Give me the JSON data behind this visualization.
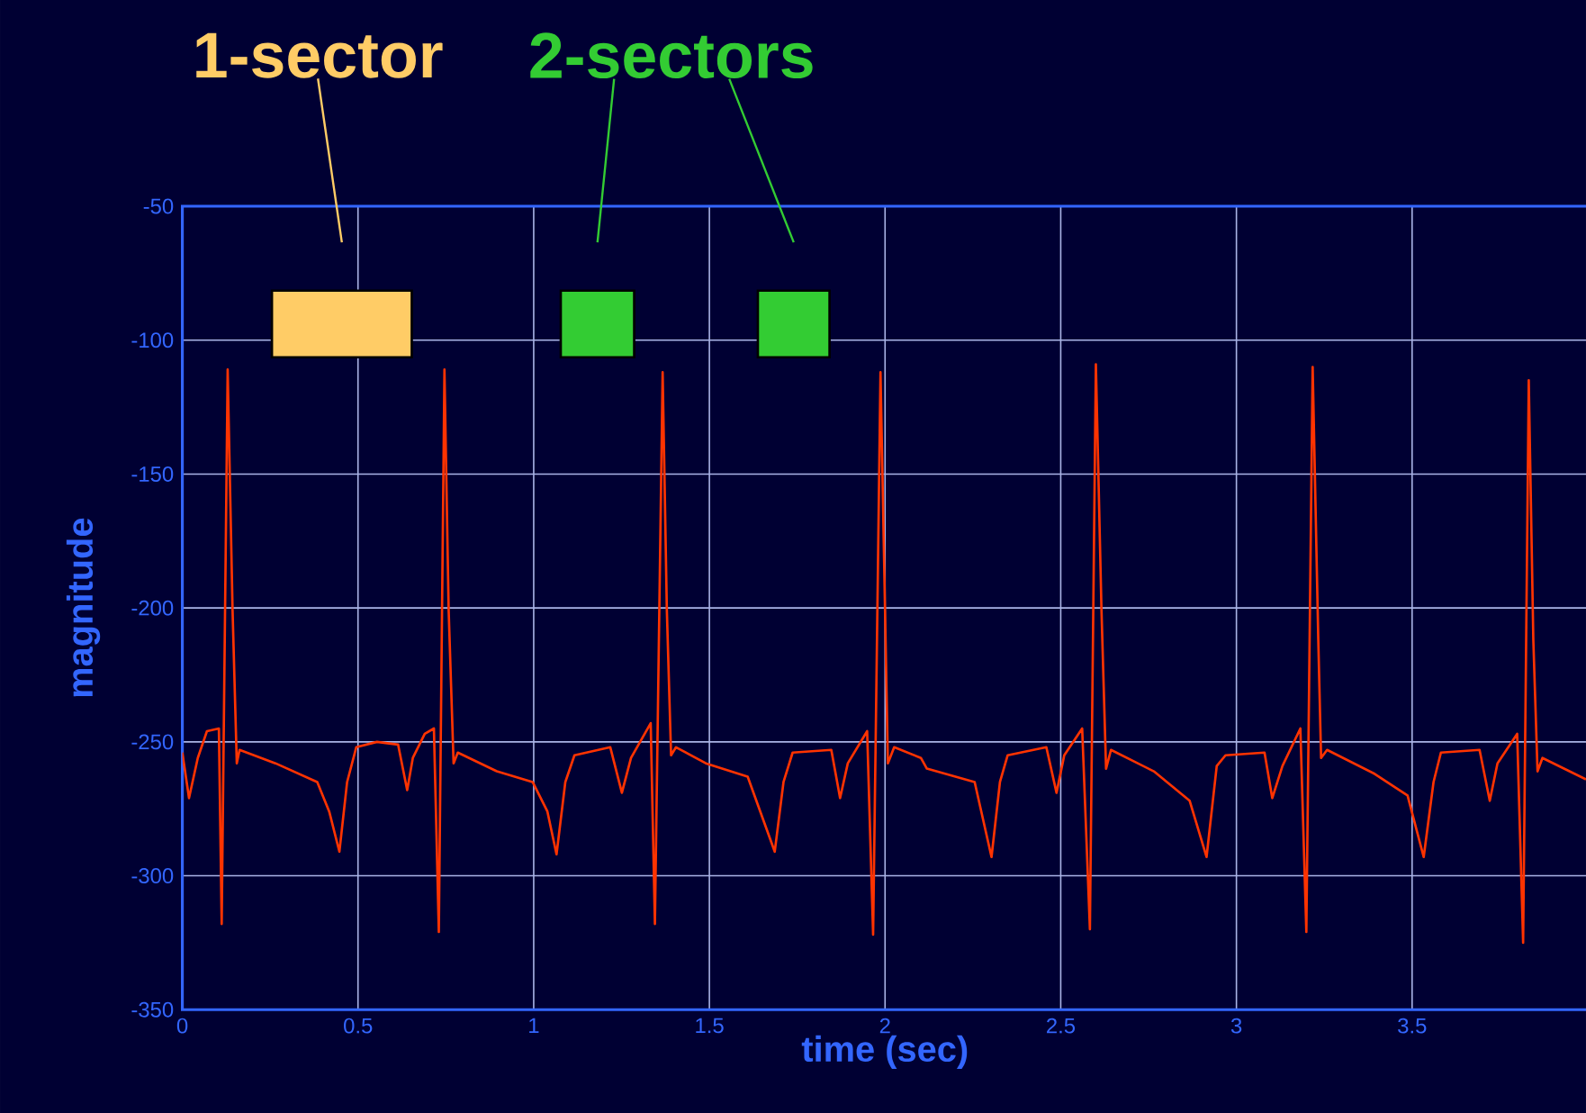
{
  "chart_data": {
    "type": "line",
    "xlabel": "time (sec)",
    "ylabel": "magnitude",
    "xlim": [
      0,
      4
    ],
    "ylim": [
      -350,
      -50
    ],
    "xticks": [
      0,
      0.5,
      1,
      1.5,
      2,
      2.5,
      3,
      3.5
    ],
    "yticks": [
      -350,
      -300,
      -250,
      -200,
      -150,
      -100,
      -50
    ],
    "grid": true,
    "series": [
      {
        "color": "#ff3300",
        "x": [
          0,
          0.019,
          0.044,
          0.07,
          0.104,
          0.112,
          0.129,
          0.143,
          0.155,
          0.163,
          0.265,
          0.384,
          0.418,
          0.447,
          0.469,
          0.495,
          0.554,
          0.614,
          0.64,
          0.656,
          0.69,
          0.716,
          0.73,
          0.746,
          0.758,
          0.772,
          0.784,
          0.895,
          0.997,
          1.039,
          1.065,
          1.09,
          1.116,
          1.218,
          1.251,
          1.277,
          1.333,
          1.345,
          1.367,
          1.379,
          1.391,
          1.405,
          1.49,
          1.609,
          1.686,
          1.711,
          1.737,
          1.847,
          1.872,
          1.894,
          1.949,
          1.966,
          1.987,
          2.0,
          2.008,
          2.026,
          2.102,
          2.119,
          2.255,
          2.303,
          2.327,
          2.349,
          2.459,
          2.488,
          2.51,
          2.561,
          2.583,
          2.6,
          2.616,
          2.629,
          2.643,
          2.765,
          2.867,
          2.915,
          2.944,
          2.969,
          3.08,
          3.102,
          3.131,
          3.182,
          3.199,
          3.217,
          3.233,
          3.241,
          3.258,
          3.394,
          3.487,
          3.533,
          3.561,
          3.582,
          3.692,
          3.721,
          3.743,
          3.799,
          3.816,
          3.832,
          3.845,
          3.857,
          3.871,
          3.995
        ],
        "values": [
          -254,
          -271,
          -256,
          -246,
          -245,
          -318,
          -111,
          -201,
          -258,
          -253,
          -258,
          -265,
          -276,
          -291,
          -265,
          -252,
          -250,
          -251,
          -268,
          -256,
          -247,
          -245,
          -321,
          -111,
          -201,
          -258,
          -254,
          -261,
          -265,
          -276,
          -292,
          -265,
          -255,
          -252,
          -269,
          -256,
          -243,
          -318,
          -112,
          -201,
          -255,
          -252,
          -258,
          -263,
          -291,
          -265,
          -254,
          -253,
          -271,
          -258,
          -246,
          -322,
          -112,
          -201,
          -258,
          -252,
          -256,
          -260,
          -265,
          -293,
          -265,
          -255,
          -252,
          -269,
          -255,
          -245,
          -320,
          -109,
          -201,
          -260,
          -253,
          -261,
          -272,
          -293,
          -259,
          -255,
          -254,
          -271,
          -259,
          -245,
          -321,
          -110,
          -212,
          -256,
          -253,
          -262,
          -270,
          -293,
          -265,
          -254,
          -253,
          -272,
          -258,
          -247,
          -325,
          -115,
          -212,
          -261,
          -256,
          -264
        ]
      }
    ],
    "bands": [
      {
        "axis": "x",
        "from": 0.255,
        "to": 0.653,
        "label": "1-sector",
        "color": "#ffcc66"
      },
      {
        "axis": "x",
        "from": 1.077,
        "to": 1.286,
        "label": "2-sectors",
        "color": "#33cc33"
      },
      {
        "axis": "x",
        "from": 1.638,
        "to": 1.842,
        "color": "#33cc33"
      }
    ]
  }
}
